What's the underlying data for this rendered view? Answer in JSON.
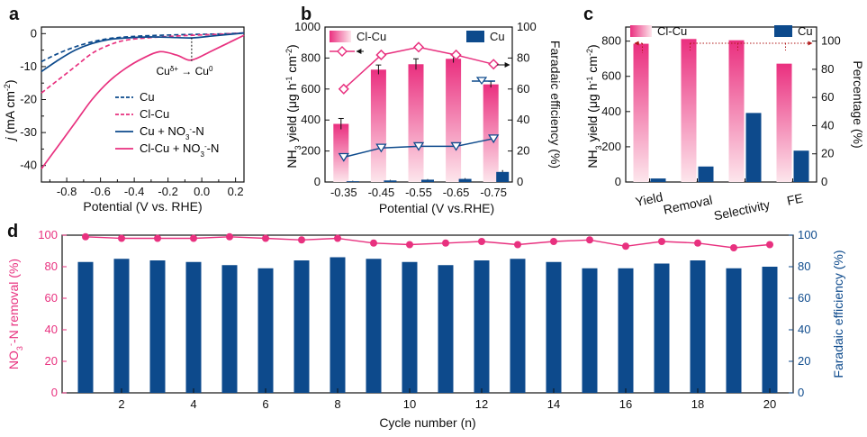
{
  "colors": {
    "pink": "#e8317f",
    "pink_light": "#fbd2de",
    "blue": "#0d4a8c",
    "black": "#111111"
  },
  "chart_data": [
    {
      "panel": "a",
      "type": "line",
      "xlabel": "Potential (V vs. RHE)",
      "ylabel": "j (mA cm-2)",
      "xlim": [
        -0.95,
        0.25
      ],
      "ylim": [
        -45,
        2
      ],
      "xticks": [
        "-0.8",
        "-0.6",
        "-0.4",
        "-0.2",
        "0.0",
        "0.2"
      ],
      "yticks": [
        "0",
        "-10",
        "-20",
        "-30",
        "-40"
      ],
      "annotation": "Cuδ+ → Cu0",
      "series": [
        {
          "name": "Cu",
          "style": "dashed",
          "color_key": "blue",
          "x": [
            -0.95,
            -0.85,
            -0.75,
            -0.65,
            -0.55,
            -0.45,
            -0.3,
            -0.1,
            0.1,
            0.25
          ],
          "y": [
            -8.5,
            -6.0,
            -4.0,
            -2.5,
            -1.5,
            -1.0,
            -0.6,
            -0.3,
            -0.1,
            0.2
          ]
        },
        {
          "name": "Cl-Cu",
          "style": "dashed",
          "color_key": "pink",
          "x": [
            -0.95,
            -0.85,
            -0.75,
            -0.65,
            -0.55,
            -0.45,
            -0.3,
            -0.1,
            0.1,
            0.25
          ],
          "y": [
            -18,
            -14,
            -10,
            -6,
            -3.5,
            -2,
            -1.2,
            -0.6,
            -0.2,
            0.2
          ]
        },
        {
          "name": "Cu + NO3--N",
          "style": "solid",
          "color_key": "blue",
          "x": [
            -0.95,
            -0.85,
            -0.75,
            -0.65,
            -0.55,
            -0.45,
            -0.3,
            -0.15,
            -0.06,
            0.05,
            0.15,
            0.25
          ],
          "y": [
            -11.5,
            -8,
            -5,
            -3,
            -1.8,
            -1.3,
            -1.0,
            -1.2,
            -1.3,
            -0.8,
            -0.3,
            0.2
          ]
        },
        {
          "name": "Cl-Cu + NO3--N",
          "style": "solid",
          "color_key": "pink",
          "x": [
            -0.95,
            -0.85,
            -0.75,
            -0.65,
            -0.55,
            -0.45,
            -0.35,
            -0.25,
            -0.15,
            -0.08,
            -0.03,
            0.05,
            0.15,
            0.25
          ],
          "y": [
            -41,
            -34,
            -27,
            -20,
            -14.5,
            -10.5,
            -7.5,
            -5.5,
            -6.5,
            -8,
            -7.5,
            -5.5,
            -3,
            -0.5
          ]
        }
      ],
      "legend": [
        "Cu",
        "Cl-Cu",
        "Cu + NO3--N",
        "Cl-Cu + NO3--N"
      ]
    },
    {
      "panel": "b",
      "type": "bar",
      "xlabel": "Potential (V vs.RHE)",
      "ylabel": "NH3 yield (μg h-1 cm-2)",
      "y2label": "Faradaic efficiency (%)",
      "categories": [
        "-0.35",
        "-0.45",
        "-0.55",
        "-0.65",
        "-0.75"
      ],
      "ylim": [
        0,
        1000
      ],
      "y2lim": [
        0,
        100
      ],
      "yticks": [
        "0",
        "200",
        "400",
        "600",
        "800",
        "1000"
      ],
      "y2ticks": [
        "0",
        "20",
        "40",
        "60",
        "80",
        "100"
      ],
      "series": [
        {
          "name": "Cl-Cu",
          "kind": "bar",
          "values": [
            375,
            725,
            760,
            795,
            630
          ],
          "errors": [
            35,
            30,
            35,
            25,
            20
          ]
        },
        {
          "name": "Cu",
          "kind": "bar",
          "values": [
            5,
            10,
            15,
            20,
            65
          ],
          "errors": [
            3,
            4,
            4,
            5,
            12
          ]
        },
        {
          "name": "Cl-Cu FE",
          "kind": "line",
          "axis": "right",
          "values": [
            60,
            82,
            87,
            82,
            76
          ],
          "errors": [
            1.5,
            3,
            2,
            1.5,
            1.5
          ]
        },
        {
          "name": "Cu FE",
          "kind": "line",
          "axis": "right",
          "values": [
            16,
            22,
            23,
            23,
            28
          ],
          "errors": [
            1.5,
            1,
            1,
            1,
            1.5
          ]
        }
      ],
      "legend": [
        "Cl-Cu",
        "Cu"
      ]
    },
    {
      "panel": "c",
      "type": "bar",
      "xlabel": "",
      "ylabel": "NH3 yield (μg h-1 cm-2)",
      "y2label": "Percentage (%)",
      "categories": [
        "Yield",
        "Removal",
        "Selectivity",
        "FE"
      ],
      "ylim": [
        0,
        880
      ],
      "y2lim": [
        0,
        110
      ],
      "yticks": [
        "0",
        "200",
        "400",
        "600",
        "800"
      ],
      "y2ticks": [
        "0",
        "20",
        "40",
        "60",
        "80",
        "100"
      ],
      "series": [
        {
          "name": "Cl-Cu",
          "values_display": [
            785,
            812,
            805,
            672
          ],
          "units": [
            "μg h-1 cm-2",
            "%",
            "%",
            "%"
          ]
        },
        {
          "name": "Cu",
          "values_display": [
            20,
            88,
            392,
            178
          ]
        }
      ],
      "legend": [
        "Cl-Cu",
        "Cu"
      ]
    },
    {
      "panel": "d",
      "type": "bar",
      "xlabel": "Cycle number (n)",
      "ylabel": "NO3--N removal (%)",
      "y2label": "Faradaic efficiency (%)",
      "x": [
        1,
        2,
        3,
        4,
        5,
        6,
        7,
        8,
        9,
        10,
        11,
        12,
        13,
        14,
        15,
        16,
        17,
        18,
        19,
        20
      ],
      "xticks": [
        "2",
        "4",
        "6",
        "8",
        "10",
        "12",
        "14",
        "16",
        "18",
        "20"
      ],
      "ylim": [
        0,
        100
      ],
      "y2lim": [
        0,
        100
      ],
      "yticks": [
        "0",
        "20",
        "40",
        "60",
        "80",
        "100"
      ],
      "y2ticks": [
        "0",
        "20",
        "40",
        "60",
        "80",
        "100"
      ],
      "series": [
        {
          "name": "Faradaic efficiency",
          "kind": "bar",
          "axis": "right",
          "values": [
            83,
            85,
            84,
            83,
            81,
            79,
            84,
            86,
            85,
            83,
            81,
            84,
            85,
            83,
            79,
            79,
            82,
            84,
            79,
            80
          ]
        },
        {
          "name": "NO3--N removal",
          "kind": "line",
          "axis": "left",
          "values": [
            99,
            98,
            98,
            98,
            99,
            98,
            97,
            98,
            95,
            94,
            95,
            96,
            94,
            96,
            97,
            93,
            96,
            95,
            92,
            94
          ]
        }
      ]
    }
  ]
}
